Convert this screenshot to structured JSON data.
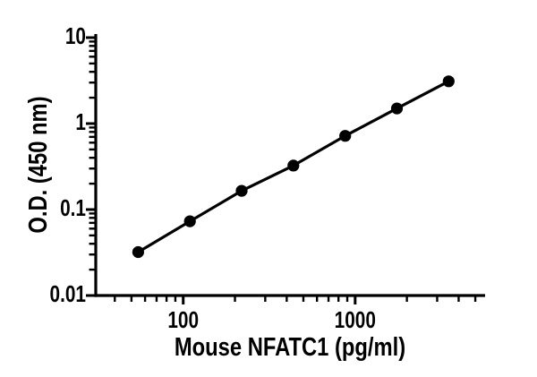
{
  "figure": {
    "background_color": "#ffffff",
    "description": "ELISA standard curve, log-log scatter plot with connecting line"
  },
  "chart_data": {
    "type": "scatter",
    "series": [
      {
        "name": "standard-curve",
        "x": [
          54.7,
          109.4,
          218.8,
          437.5,
          875,
          1750,
          3500
        ],
        "y": [
          0.032,
          0.073,
          0.165,
          0.325,
          0.72,
          1.5,
          3.1
        ]
      }
    ],
    "title": "",
    "xlabel": "Mouse NFATC1 (pg/ml)",
    "ylabel": "O.D. (450 nm)",
    "xscale": "log",
    "yscale": "log",
    "xlim": [
      31,
      5700
    ],
    "ylim": [
      0.01,
      10
    ],
    "x_major_ticks": [
      100,
      1000
    ],
    "x_tick_labels": [
      "100",
      "1000"
    ],
    "y_major_ticks": [
      0.01,
      0.1,
      1,
      10
    ],
    "y_tick_labels": [
      "0.01",
      "0.1",
      "1",
      "10"
    ],
    "minor_ticks": "log-decades",
    "grid": false,
    "legend": false,
    "marker": "filled-circle",
    "line_style": "solid",
    "colors": {
      "line": "#000000",
      "marker": "#000000",
      "axis": "#000000",
      "text": "#000000",
      "background": "#ffffff"
    }
  }
}
